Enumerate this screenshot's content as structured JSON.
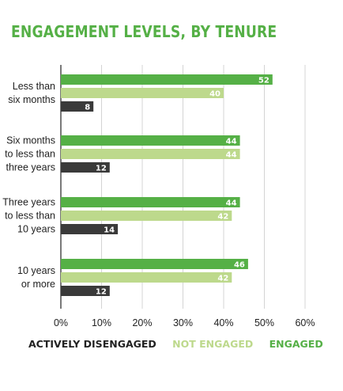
{
  "title": "ENGAGEMENT LEVELS, BY TENURE",
  "colors": {
    "engaged": "#55b046",
    "not_engaged": "#bdd98c",
    "actively_disengaged": "#3a3a3a",
    "title": "#55b046",
    "axis": "#4d4d4d",
    "text": "#222222"
  },
  "legend": [
    {
      "label": "ACTIVELY DISENGAGED",
      "color": "#222222"
    },
    {
      "label": "NOT ENGAGED",
      "color": "#bdd98c"
    },
    {
      "label": "ENGAGED",
      "color": "#55b046"
    }
  ],
  "chart_data": {
    "type": "bar",
    "orientation": "horizontal",
    "title": "ENGAGEMENT LEVELS, BY TENURE",
    "categories": [
      [
        "Less than",
        "six months"
      ],
      [
        "Six months",
        "to less than",
        "three years"
      ],
      [
        "Three years",
        "to less than",
        "10 years"
      ],
      [
        "10 years",
        "or more"
      ]
    ],
    "series": [
      {
        "name": "ENGAGED",
        "color": "#55b046",
        "values": [
          52,
          44,
          44,
          46
        ]
      },
      {
        "name": "NOT ENGAGED",
        "color": "#bdd98c",
        "values": [
          40,
          44,
          42,
          42
        ]
      },
      {
        "name": "ACTIVELY DISENGAGED",
        "color": "#3a3a3a",
        "values": [
          8,
          12,
          14,
          12
        ]
      }
    ],
    "xlim": [
      0,
      60
    ],
    "xticks": [
      "0%",
      "10%",
      "20%",
      "30%",
      "40%",
      "50%",
      "60%"
    ],
    "grid": true,
    "legend_position": "bottom"
  }
}
